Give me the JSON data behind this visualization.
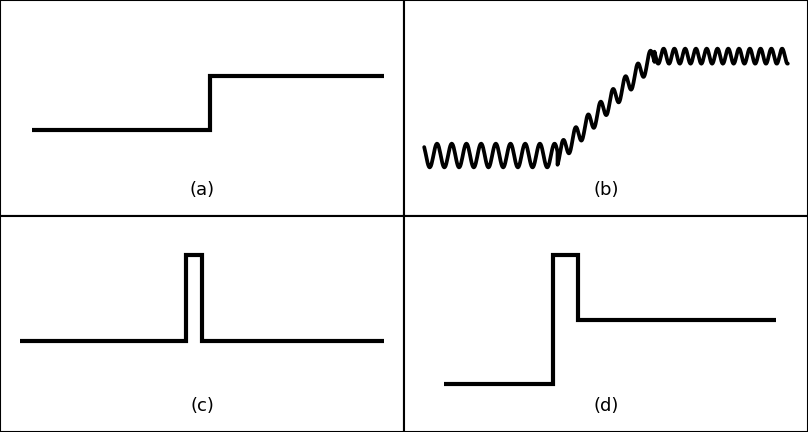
{
  "background_color": "#ffffff",
  "line_color": "#000000",
  "border_color": "#000000",
  "linewidth": 3.0,
  "label_fontsize": 13,
  "labels": [
    "(a)",
    "(b)",
    "(c)",
    "(d)"
  ],
  "fig_width": 8.08,
  "fig_height": 4.32
}
